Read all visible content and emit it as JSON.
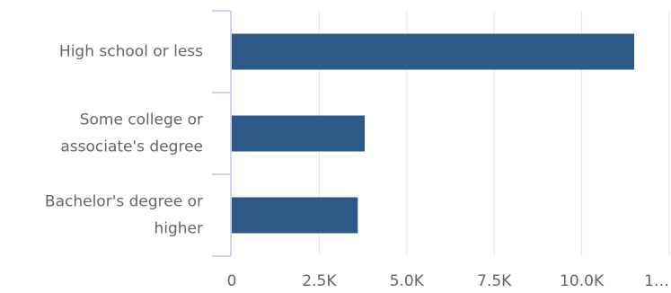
{
  "chart_data": {
    "type": "bar",
    "orientation": "horizontal",
    "categories": [
      [
        "High school or less"
      ],
      [
        "Some college or",
        "associate's degree"
      ],
      [
        "Bachelor's degree or",
        "higher"
      ]
    ],
    "values": [
      11500,
      3800,
      3600
    ],
    "color": "#2e5a87",
    "xlim": [
      0,
      12500
    ],
    "xticks": [
      0,
      {
        "value": 2500,
        "label": "2.5K"
      },
      {
        "value": 5000,
        "label": "5.0K"
      },
      {
        "value": 7500,
        "label": "7.5K"
      },
      {
        "value": 10000,
        "label": "10.0K"
      },
      {
        "value": 12500,
        "label": "1…"
      }
    ],
    "grid": true
  }
}
